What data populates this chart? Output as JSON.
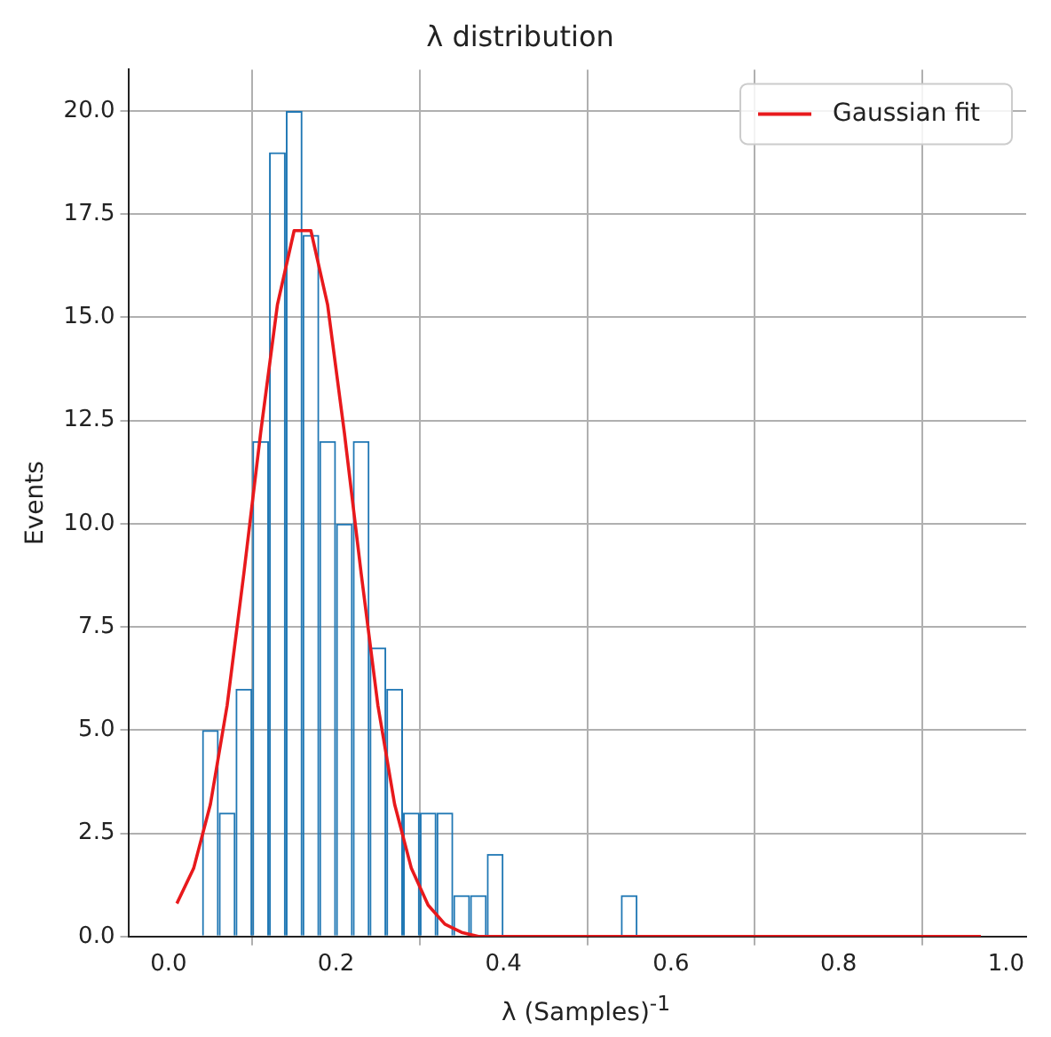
{
  "chart_data": {
    "type": "histogram",
    "title": "λ distribution",
    "xlabel": "λ (Samples)$^{-1}$",
    "ylabel": "Events",
    "bins": [
      0.04,
      0.06,
      0.08,
      0.1,
      0.12,
      0.14,
      0.16,
      0.18,
      0.2,
      0.22,
      0.24,
      0.26,
      0.28,
      0.3,
      0.32,
      0.34,
      0.36,
      0.38,
      0.4,
      0.42,
      0.44,
      0.46,
      0.48,
      0.5,
      0.52,
      0.54,
      0.56
    ],
    "values": [
      5,
      3,
      6,
      12,
      19,
      20,
      17,
      12,
      10,
      12,
      7,
      6,
      3,
      3,
      3,
      1,
      1,
      2,
      0,
      0,
      0,
      0,
      0,
      0,
      0,
      1
    ],
    "color": "#1f77b4",
    "series": [
      {
        "type": "line",
        "name": "Gaussian fit",
        "color": "#e8191c",
        "x": [
          0.01,
          0.03,
          0.05,
          0.07,
          0.09,
          0.11,
          0.13,
          0.15,
          0.17,
          0.19,
          0.21,
          0.23,
          0.25,
          0.27,
          0.29,
          0.31,
          0.33,
          0.35,
          0.37,
          0.39,
          0.97
        ],
        "values": [
          0.8,
          1.65,
          3.2,
          5.6,
          8.8,
          12.2,
          15.3,
          17.1,
          17.1,
          15.3,
          12.2,
          8.8,
          5.6,
          3.2,
          1.65,
          0.76,
          0.3,
          0.1,
          0,
          0,
          0
        ]
      }
    ],
    "xlim": [
      -0.047,
      1.024
    ],
    "ylim": [
      0,
      21
    ],
    "xticks": [
      {
        "value": 0,
        "label": "0.0"
      },
      {
        "value": 0.2,
        "label": "0.2"
      },
      {
        "value": 0.4,
        "label": "0.4"
      },
      {
        "value": 0.6,
        "label": "0.6"
      },
      {
        "value": 0.8,
        "label": "0.8"
      },
      {
        "value": 1,
        "label": "1.0"
      }
    ],
    "yticks": [
      {
        "value": 0,
        "label": "0.0"
      },
      {
        "value": 2.5,
        "label": "2.5"
      },
      {
        "value": 5,
        "label": "5.0"
      },
      {
        "value": 7.5,
        "label": "7.5"
      },
      {
        "value": 10,
        "label": "10.0"
      },
      {
        "value": 12.5,
        "label": "12.5"
      },
      {
        "value": 15,
        "label": "15.0"
      },
      {
        "value": 17.5,
        "label": "17.5"
      },
      {
        "value": 20,
        "label": "20.0"
      }
    ],
    "grid": true,
    "legend": "top right"
  }
}
